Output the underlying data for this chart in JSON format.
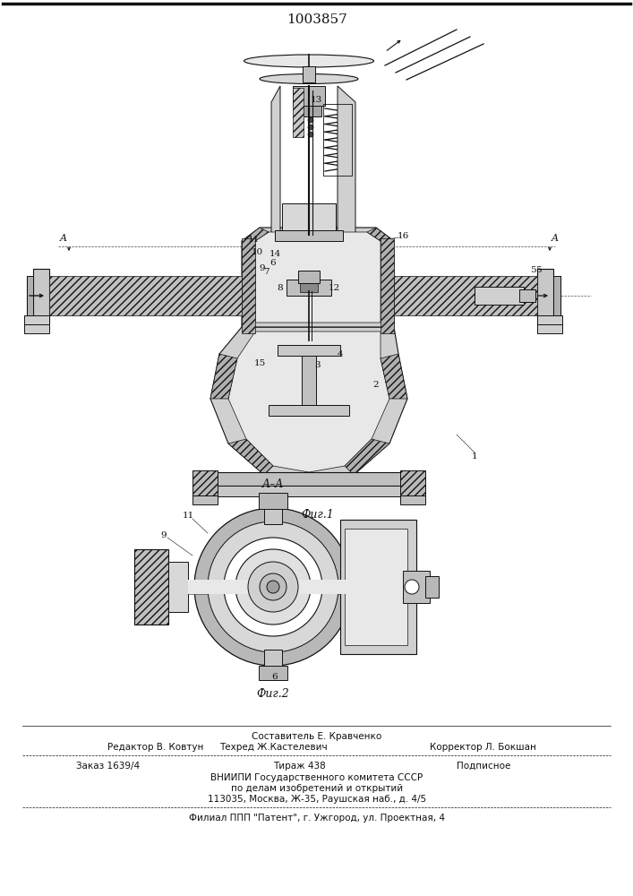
{
  "patent_number": "1003857",
  "fig1_caption": "Фиг.1",
  "fig2_caption": "Фиг.2",
  "section_aa": "A–A",
  "editor_line": "Редактор В. Ковтун",
  "composer_line": "Составитель Е. Кравченко",
  "techred_line": "Техред Ж.Кастелевич",
  "corrector_line": "Корректор Л. Бокшан",
  "order_text": "Заказ 1639/4",
  "tirazh_text": "Тираж 438",
  "podpisnoe_text": "Подписное",
  "vnipi_text": "ВНИИПИ Государственного комитета СССР",
  "affairs_text": "по делам изобретений и открытий",
  "address_text": "113035, Москва, Ж-35, Раушская наб., д. 4/5",
  "patent_addr": "Филиал ППП \"Патент\", г. Ужгород, ул. Проектная, 4"
}
